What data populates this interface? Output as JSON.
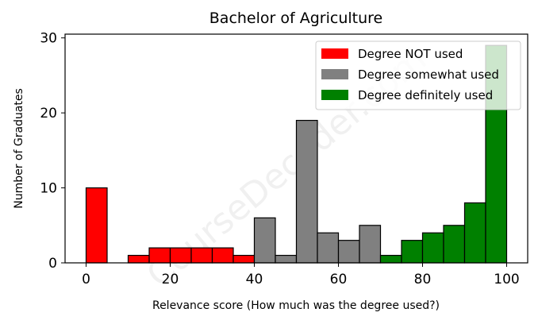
{
  "watermark": "CourseDecoder.com",
  "chart_data": {
    "type": "bar",
    "title": "Bachelor of Agriculture",
    "xlabel": "Relevance score (How much was the degree used?)",
    "ylabel": "Number of Graduates",
    "xlim": [
      -5,
      105
    ],
    "ylim": [
      0,
      30.5
    ],
    "xticks": [
      0,
      20,
      40,
      60,
      80,
      100
    ],
    "yticks": [
      0,
      10,
      20,
      30
    ],
    "bin_width": 5,
    "legend_position": "top-right",
    "series": [
      {
        "name": "Degree NOT used",
        "color": "#ff0000",
        "bins": [
          [
            0,
            10
          ],
          [
            5,
            0
          ],
          [
            10,
            1
          ],
          [
            15,
            2
          ],
          [
            20,
            2
          ],
          [
            25,
            2
          ],
          [
            30,
            2
          ],
          [
            35,
            1
          ]
        ]
      },
      {
        "name": "Degree somewhat used",
        "color": "#808080",
        "bins": [
          [
            40,
            6
          ],
          [
            45,
            1
          ],
          [
            50,
            19
          ],
          [
            55,
            4
          ],
          [
            60,
            3
          ],
          [
            65,
            5
          ]
        ]
      },
      {
        "name": "Degree definitely used",
        "color": "#008000",
        "bins": [
          [
            70,
            1
          ],
          [
            75,
            3
          ],
          [
            80,
            4
          ],
          [
            85,
            5
          ],
          [
            90,
            8
          ],
          [
            95,
            29
          ]
        ]
      }
    ]
  }
}
